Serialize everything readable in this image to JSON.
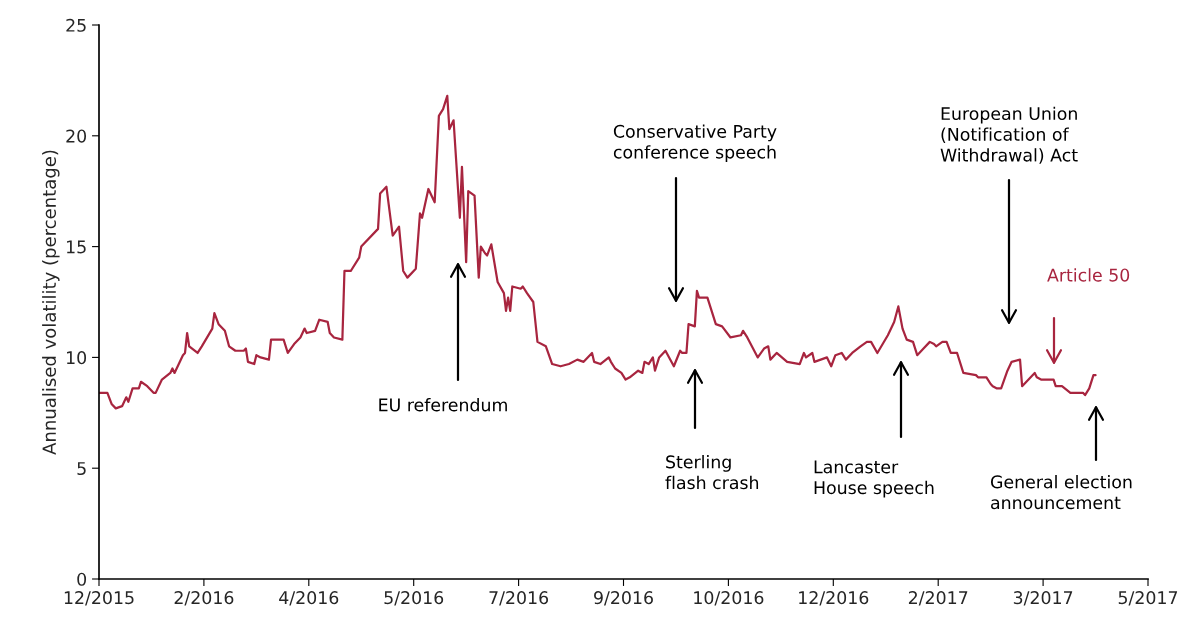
{
  "chart_data": {
    "type": "line",
    "ylabel": "Annualised volatility (percentage)",
    "xlim": [
      "2015-12-29",
      "2017-05-12"
    ],
    "xticks": [
      {
        "value": "2015-12-29",
        "label": "12/2015"
      },
      {
        "value": "2016-02-17",
        "label": "2/2016"
      },
      {
        "value": "2016-04-07",
        "label": "4/2016"
      },
      {
        "value": "2016-05-27",
        "label": "5/2016"
      },
      {
        "value": "2016-07-16",
        "label": "7/2016"
      },
      {
        "value": "2016-09-04",
        "label": "9/2016"
      },
      {
        "value": "2016-10-24",
        "label": "10/2016"
      },
      {
        "value": "2016-12-13",
        "label": "12/2016"
      },
      {
        "value": "2017-02-01",
        "label": "2/2017"
      },
      {
        "value": "2017-03-23",
        "label": "3/2017"
      },
      {
        "value": "2017-05-12",
        "label": "5/2017"
      }
    ],
    "ylim": [
      0,
      25
    ],
    "yticks": [
      0,
      5,
      10,
      15,
      20,
      25
    ],
    "grid": false,
    "legend": false,
    "marker": "none",
    "line_style": "solid",
    "series": [
      {
        "color": "#a8253f",
        "x": [
          "2015-12-29",
          "2016-01-02",
          "2016-01-04",
          "2016-01-06",
          "2016-01-09",
          "2016-01-11",
          "2016-01-12",
          "2016-01-14",
          "2016-01-17",
          "2016-01-18",
          "2016-01-21",
          "2016-01-24",
          "2016-01-25",
          "2016-01-28",
          "2016-02-01",
          "2016-02-02",
          "2016-02-03",
          "2016-02-07",
          "2016-02-08",
          "2016-02-09",
          "2016-02-10",
          "2016-02-14",
          "2016-02-16",
          "2016-02-21",
          "2016-02-22",
          "2016-02-24",
          "2016-02-27",
          "2016-02-29",
          "2016-03-03",
          "2016-03-07",
          "2016-03-08",
          "2016-03-09",
          "2016-03-12",
          "2016-03-13",
          "2016-03-15",
          "2016-03-19",
          "2016-03-20",
          "2016-03-26",
          "2016-03-28",
          "2016-03-31",
          "2016-04-03",
          "2016-04-05",
          "2016-04-06",
          "2016-04-10",
          "2016-04-12",
          "2016-04-16",
          "2016-04-17",
          "2016-04-19",
          "2016-04-23",
          "2016-04-24",
          "2016-04-27",
          "2016-05-01",
          "2016-05-02",
          "2016-05-10",
          "2016-05-11",
          "2016-05-14",
          "2016-05-17",
          "2016-05-20",
          "2016-05-22",
          "2016-05-24",
          "2016-05-28",
          "2016-05-30",
          "2016-05-31",
          "2016-06-03",
          "2016-06-06",
          "2016-06-08",
          "2016-06-10",
          "2016-06-12",
          "2016-06-13",
          "2016-06-15",
          "2016-06-18",
          "2016-06-19",
          "2016-06-21",
          "2016-06-22",
          "2016-06-25",
          "2016-06-27",
          "2016-06-28",
          "2016-06-30",
          "2016-07-01",
          "2016-07-03",
          "2016-07-06",
          "2016-07-09",
          "2016-07-10",
          "2016-07-11",
          "2016-07-12",
          "2016-07-13",
          "2016-07-17",
          "2016-07-18",
          "2016-07-20",
          "2016-07-23",
          "2016-07-25",
          "2016-07-29",
          "2016-08-01",
          "2016-08-05",
          "2016-08-09",
          "2016-08-13",
          "2016-08-16",
          "2016-08-20",
          "2016-08-21",
          "2016-08-24",
          "2016-08-28",
          "2016-08-29",
          "2016-08-31",
          "2016-09-03",
          "2016-09-05",
          "2016-09-07",
          "2016-09-11",
          "2016-09-13",
          "2016-09-14",
          "2016-09-16",
          "2016-09-18",
          "2016-09-19",
          "2016-09-21",
          "2016-09-24",
          "2016-09-28",
          "2016-10-01",
          "2016-10-02",
          "2016-10-04",
          "2016-10-05",
          "2016-10-08",
          "2016-10-09",
          "2016-10-10",
          "2016-10-14",
          "2016-10-18",
          "2016-10-21",
          "2016-10-25",
          "2016-10-30",
          "2016-10-31",
          "2016-11-02",
          "2016-11-07",
          "2016-11-10",
          "2016-11-12",
          "2016-11-13",
          "2016-11-16",
          "2016-11-21",
          "2016-11-27",
          "2016-11-29",
          "2016-11-30",
          "2016-12-03",
          "2016-12-04",
          "2016-12-10",
          "2016-12-12",
          "2016-12-14",
          "2016-12-17",
          "2016-12-19",
          "2016-12-22",
          "2016-12-26",
          "2016-12-29",
          "2016-12-31",
          "2017-01-03",
          "2017-01-08",
          "2017-01-11",
          "2017-01-13",
          "2017-01-15",
          "2017-01-17",
          "2017-01-20",
          "2017-01-22",
          "2017-01-25",
          "2017-01-28",
          "2017-01-30",
          "2017-01-31",
          "2017-02-03",
          "2017-02-05",
          "2017-02-07",
          "2017-02-10",
          "2017-02-13",
          "2017-02-19",
          "2017-02-20",
          "2017-02-24",
          "2017-02-26",
          "2017-02-27",
          "2017-03-01",
          "2017-03-03",
          "2017-03-06",
          "2017-03-08",
          "2017-03-12",
          "2017-03-13",
          "2017-03-19",
          "2017-03-20",
          "2017-03-22",
          "2017-03-25",
          "2017-03-28",
          "2017-03-29",
          "2017-04-01",
          "2017-04-05",
          "2017-04-11",
          "2017-04-12",
          "2017-04-14",
          "2017-04-16",
          "2017-04-17"
        ],
        "values": [
          8.4,
          8.4,
          7.9,
          7.7,
          7.8,
          8.2,
          8.0,
          8.6,
          8.6,
          8.9,
          8.7,
          8.4,
          8.4,
          9.0,
          9.3,
          9.5,
          9.3,
          10.1,
          10.2,
          11.1,
          10.5,
          10.2,
          10.5,
          11.3,
          12.0,
          11.5,
          11.2,
          10.5,
          10.3,
          10.3,
          10.4,
          9.8,
          9.7,
          10.1,
          10.0,
          9.9,
          10.8,
          10.8,
          10.2,
          10.6,
          10.9,
          11.3,
          11.1,
          11.2,
          11.7,
          11.6,
          11.1,
          10.9,
          10.8,
          13.9,
          13.9,
          14.5,
          15.0,
          15.8,
          17.4,
          17.7,
          15.5,
          15.9,
          13.9,
          13.6,
          14.0,
          16.5,
          16.3,
          17.6,
          17.0,
          20.9,
          21.2,
          21.8,
          20.3,
          20.7,
          16.3,
          18.6,
          14.3,
          17.5,
          17.3,
          13.6,
          15.0,
          14.7,
          14.6,
          15.1,
          13.4,
          12.9,
          12.1,
          12.7,
          12.1,
          13.2,
          13.1,
          13.2,
          12.9,
          12.5,
          10.7,
          10.5,
          9.7,
          9.6,
          9.7,
          9.9,
          9.8,
          10.2,
          9.8,
          9.7,
          10.0,
          9.8,
          9.5,
          9.3,
          9.0,
          9.1,
          9.4,
          9.3,
          9.8,
          9.7,
          10.0,
          9.4,
          10.0,
          10.3,
          9.6,
          10.3,
          10.2,
          10.2,
          11.5,
          11.4,
          13.0,
          12.7,
          12.7,
          11.5,
          11.4,
          10.9,
          11.0,
          11.2,
          10.9,
          10.0,
          10.4,
          10.5,
          9.9,
          10.2,
          9.8,
          9.7,
          10.2,
          10.0,
          10.2,
          9.8,
          10.0,
          9.6,
          10.1,
          10.2,
          9.9,
          10.2,
          10.5,
          10.7,
          10.7,
          10.2,
          11.0,
          11.6,
          12.3,
          11.3,
          10.8,
          10.7,
          10.1,
          10.4,
          10.7,
          10.6,
          10.5,
          10.7,
          10.7,
          10.2,
          10.2,
          9.3,
          9.2,
          9.1,
          9.1,
          8.8,
          8.7,
          8.6,
          8.6,
          9.4,
          9.8,
          9.9,
          8.7,
          9.3,
          9.1,
          9.0,
          9.0,
          9.0,
          8.7,
          8.7,
          8.4,
          8.4,
          8.3,
          8.6,
          9.2,
          9.2
        ]
      }
    ],
    "annotations": [
      "EU referendum",
      "Conservative Party\nconference speech",
      "Sterling\nflash crash",
      "Lancaster\nHouse speech",
      "European Union\n(Notification of\nWithdrawal) Act",
      "Article 50",
      "General election\nannouncement"
    ]
  }
}
